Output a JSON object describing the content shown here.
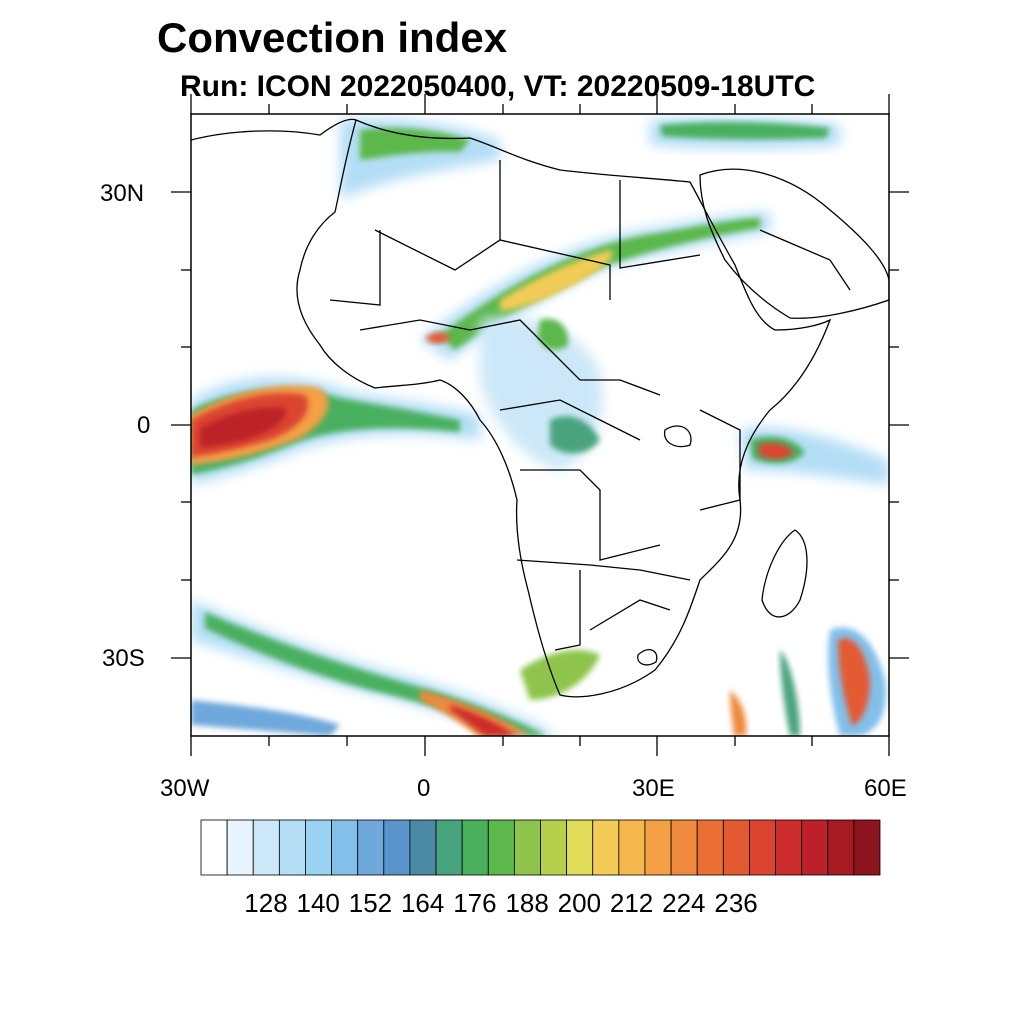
{
  "title": "Convection index",
  "subtitle": "Run: ICON 2022050400,  VT: 20220509-18UTC",
  "axes": {
    "lat_labels": [
      "30N",
      "0",
      "30S"
    ],
    "lon_labels": [
      "30W",
      "0",
      "30E",
      "60E"
    ]
  },
  "colorbar": {
    "labels": [
      "128",
      "140",
      "152",
      "164",
      "176",
      "188",
      "200",
      "212",
      "224",
      "236"
    ],
    "colors": [
      "#ffffff",
      "#e8f4fc",
      "#cce8f8",
      "#b4def6",
      "#9ad2f2",
      "#82c0ea",
      "#6ea8dc",
      "#5a94cc",
      "#4a8aa4",
      "#48a47e",
      "#4ab05e",
      "#5cb84c",
      "#8ec44c",
      "#b6d04c",
      "#e0dc58",
      "#f2cc56",
      "#f6b84c",
      "#f4a044",
      "#f08a3e",
      "#ec7036",
      "#e45a30",
      "#dc4430",
      "#cc2c2c",
      "#bc2028",
      "#a81a22",
      "#8c141c"
    ]
  },
  "colors": {
    "border": "#000000",
    "frame": "#000000"
  }
}
